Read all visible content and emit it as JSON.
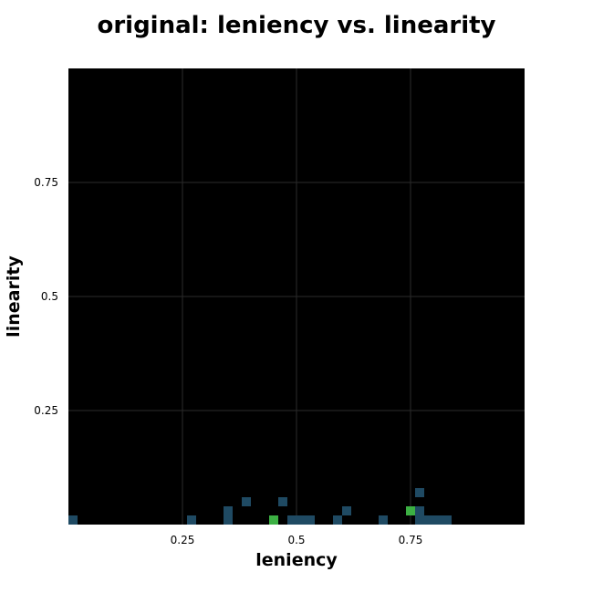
{
  "chart_data": {
    "type": "heatmap",
    "title": "original: leniency vs. linearity",
    "xlabel": "leniency",
    "ylabel": "linearity",
    "xlim": [
      0,
      1
    ],
    "ylim": [
      0,
      1
    ],
    "x_ticks": [
      {
        "value": 0.25,
        "label": "0.25"
      },
      {
        "value": 0.5,
        "label": "0.5"
      },
      {
        "value": 0.75,
        "label": "0.75"
      }
    ],
    "y_ticks": [
      {
        "value": 0.25,
        "label": "0.25"
      },
      {
        "value": 0.5,
        "label": "0.5"
      },
      {
        "value": 0.75,
        "label": "0.75"
      }
    ],
    "grid": true,
    "background_color": "#000000",
    "grid_color": "#2b2b2b",
    "bin_size": 0.02,
    "color_scale": {
      "low": "#1f4a63",
      "high": "#3cb043"
    },
    "cells": [
      {
        "x": 0.0,
        "y": 0.0,
        "count": 1
      },
      {
        "x": 0.26,
        "y": 0.0,
        "count": 1
      },
      {
        "x": 0.34,
        "y": 0.0,
        "count": 1
      },
      {
        "x": 0.34,
        "y": 0.02,
        "count": 1
      },
      {
        "x": 0.38,
        "y": 0.04,
        "count": 1
      },
      {
        "x": 0.44,
        "y": 0.0,
        "count": 2
      },
      {
        "x": 0.46,
        "y": 0.04,
        "count": 1
      },
      {
        "x": 0.48,
        "y": 0.0,
        "count": 1
      },
      {
        "x": 0.5,
        "y": 0.0,
        "count": 1
      },
      {
        "x": 0.52,
        "y": 0.0,
        "count": 1
      },
      {
        "x": 0.58,
        "y": 0.0,
        "count": 1
      },
      {
        "x": 0.6,
        "y": 0.02,
        "count": 1
      },
      {
        "x": 0.68,
        "y": 0.0,
        "count": 1
      },
      {
        "x": 0.74,
        "y": 0.02,
        "count": 2
      },
      {
        "x": 0.76,
        "y": 0.0,
        "count": 1
      },
      {
        "x": 0.76,
        "y": 0.02,
        "count": 1
      },
      {
        "x": 0.76,
        "y": 0.06,
        "count": 1
      },
      {
        "x": 0.78,
        "y": 0.0,
        "count": 1
      },
      {
        "x": 0.8,
        "y": 0.0,
        "count": 1
      },
      {
        "x": 0.82,
        "y": 0.0,
        "count": 1
      }
    ]
  }
}
